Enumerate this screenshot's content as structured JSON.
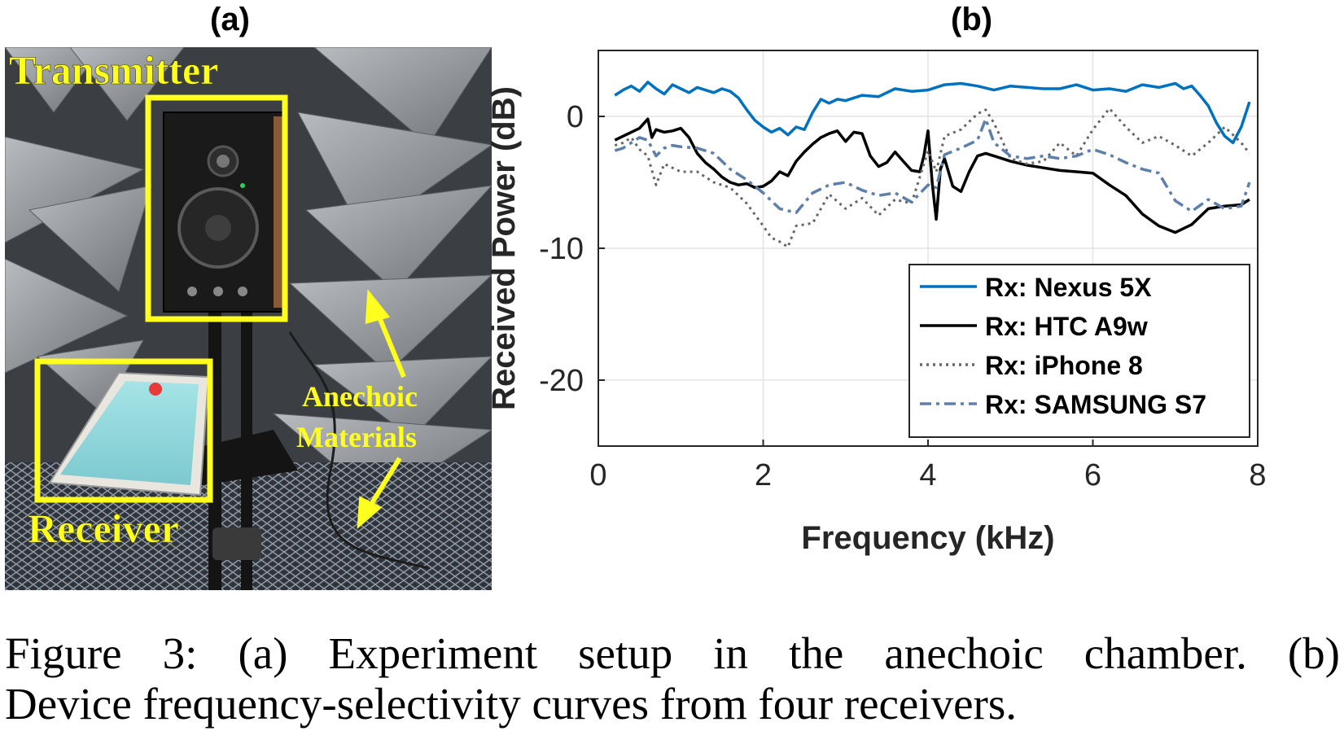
{
  "panel_a": {
    "label": "(a)",
    "annotations": {
      "transmitter": "Transmitter",
      "receiver": "Receiver",
      "anechoic_line1": "Anechoic",
      "anechoic_line2": "Materials"
    },
    "colors": {
      "highlight": "#ffff1f",
      "foam": "#a9acb0",
      "foam_dark": "#5c6064"
    }
  },
  "panel_b": {
    "label": "(b)"
  },
  "caption": {
    "line1": "Figure 3: (a) Experiment setup in the anechoic chamber. (b)",
    "line2": "Device frequency-selectivity curves from four receivers."
  },
  "chart_data": {
    "type": "line",
    "xlabel": "Frequency (kHz)",
    "ylabel": "Received Power (dB)",
    "xlim": [
      0,
      8
    ],
    "ylim": [
      -25,
      5
    ],
    "xticks": [
      0,
      2,
      4,
      6,
      8
    ],
    "yticks": [
      0,
      -10,
      -20
    ],
    "grid": true,
    "legend_position": "bottom-right",
    "series": [
      {
        "name": "Rx: Nexus 5X",
        "color": "#0072bd",
        "style": "solid",
        "x": [
          0.2,
          0.3,
          0.4,
          0.5,
          0.6,
          0.7,
          0.8,
          0.9,
          1.0,
          1.1,
          1.2,
          1.3,
          1.4,
          1.5,
          1.6,
          1.7,
          1.8,
          1.9,
          2.0,
          2.1,
          2.2,
          2.3,
          2.4,
          2.5,
          2.6,
          2.7,
          2.8,
          2.9,
          3.0,
          3.2,
          3.4,
          3.6,
          3.8,
          4.0,
          4.2,
          4.4,
          4.6,
          4.8,
          5.0,
          5.2,
          5.4,
          5.6,
          5.8,
          6.0,
          6.2,
          6.4,
          6.6,
          6.8,
          7.0,
          7.1,
          7.2,
          7.3,
          7.4,
          7.5,
          7.6,
          7.7,
          7.8,
          7.9
        ],
        "y": [
          1.6,
          2.0,
          2.3,
          1.9,
          2.6,
          2.1,
          1.7,
          2.4,
          2.1,
          1.8,
          2.2,
          2.0,
          1.8,
          2.1,
          1.9,
          1.4,
          0.5,
          -0.3,
          -0.8,
          -1.2,
          -0.9,
          -1.4,
          -0.8,
          -1.0,
          0.3,
          1.3,
          1.0,
          1.3,
          1.2,
          1.6,
          1.5,
          2.1,
          1.9,
          2.0,
          2.4,
          2.5,
          2.3,
          2.0,
          2.3,
          2.2,
          2.1,
          2.1,
          2.4,
          2.0,
          2.1,
          1.9,
          2.4,
          2.2,
          2.5,
          2.1,
          2.3,
          1.6,
          0.8,
          -0.5,
          -1.5,
          -2.0,
          -0.8,
          1.1
        ]
      },
      {
        "name": "Rx: HTC A9w",
        "color": "#000000",
        "style": "solid",
        "x": [
          0.2,
          0.3,
          0.4,
          0.5,
          0.6,
          0.65,
          0.7,
          0.8,
          0.9,
          1.0,
          1.1,
          1.2,
          1.3,
          1.4,
          1.5,
          1.6,
          1.7,
          1.8,
          1.9,
          2.0,
          2.1,
          2.2,
          2.3,
          2.4,
          2.5,
          2.6,
          2.7,
          2.8,
          2.9,
          3.0,
          3.1,
          3.2,
          3.3,
          3.4,
          3.5,
          3.6,
          3.7,
          3.8,
          3.9,
          3.95,
          4.0,
          4.05,
          4.1,
          4.15,
          4.2,
          4.3,
          4.4,
          4.5,
          4.6,
          4.7,
          4.8,
          5.0,
          5.2,
          5.4,
          5.6,
          5.8,
          6.0,
          6.2,
          6.4,
          6.6,
          6.8,
          7.0,
          7.2,
          7.4,
          7.6,
          7.8,
          7.9
        ],
        "y": [
          -1.8,
          -1.5,
          -1.2,
          -0.9,
          -0.2,
          -1.6,
          -1.0,
          -1.2,
          -1.1,
          -0.9,
          -1.6,
          -2.8,
          -3.5,
          -4.0,
          -4.6,
          -5.0,
          -5.2,
          -5.1,
          -5.4,
          -5.3,
          -4.9,
          -4.2,
          -4.5,
          -3.4,
          -2.7,
          -2.1,
          -1.6,
          -1.3,
          -1.1,
          -1.9,
          -1.2,
          -1.3,
          -3.0,
          -3.8,
          -3.5,
          -2.7,
          -3.4,
          -4.1,
          -4.2,
          -3.0,
          -1.1,
          -5.0,
          -7.8,
          -4.0,
          -3.2,
          -5.3,
          -5.7,
          -4.2,
          -3.0,
          -2.8,
          -3.0,
          -3.4,
          -3.7,
          -3.9,
          -4.1,
          -4.2,
          -4.3,
          -5.2,
          -6.0,
          -7.4,
          -8.3,
          -8.8,
          -8.2,
          -7.0,
          -6.8,
          -6.7,
          -6.3
        ]
      },
      {
        "name": "Rx: iPhone 8",
        "color": "#666666",
        "style": "dotted",
        "x": [
          0.2,
          0.3,
          0.4,
          0.5,
          0.6,
          0.7,
          0.8,
          0.9,
          1.0,
          1.2,
          1.4,
          1.6,
          1.8,
          2.0,
          2.1,
          2.2,
          2.3,
          2.4,
          2.6,
          2.8,
          3.0,
          3.2,
          3.4,
          3.6,
          3.8,
          4.0,
          4.1,
          4.2,
          4.4,
          4.6,
          4.7,
          4.8,
          5.0,
          5.2,
          5.4,
          5.6,
          5.8,
          6.0,
          6.2,
          6.4,
          6.6,
          6.8,
          7.0,
          7.2,
          7.4,
          7.6,
          7.8,
          7.9
        ],
        "y": [
          -2.2,
          -2.0,
          -1.6,
          -2.5,
          -3.0,
          -5.2,
          -3.6,
          -3.9,
          -4.2,
          -4.2,
          -5.0,
          -5.4,
          -6.6,
          -8.3,
          -9.2,
          -9.5,
          -9.9,
          -8.3,
          -8.1,
          -5.9,
          -7.0,
          -6.2,
          -7.5,
          -6.3,
          -6.6,
          -2.6,
          -4.2,
          -1.5,
          -1.0,
          0.2,
          0.5,
          -0.5,
          -3.2,
          -3.6,
          -3.4,
          -2.0,
          -3.0,
          -1.0,
          0.6,
          -0.8,
          -2.0,
          -1.5,
          -2.2,
          -3.0,
          -2.0,
          -0.8,
          -2.0,
          -2.8
        ]
      },
      {
        "name": "Rx: SAMSUNG S7",
        "color": "#5f7fab",
        "style": "dashdot",
        "x": [
          0.2,
          0.3,
          0.4,
          0.5,
          0.6,
          0.7,
          0.8,
          0.9,
          1.0,
          1.2,
          1.4,
          1.6,
          1.8,
          2.0,
          2.2,
          2.4,
          2.6,
          2.8,
          3.0,
          3.2,
          3.4,
          3.6,
          3.8,
          4.0,
          4.1,
          4.2,
          4.4,
          4.6,
          4.7,
          4.8,
          5.0,
          5.2,
          5.4,
          5.6,
          5.8,
          6.0,
          6.2,
          6.4,
          6.6,
          6.8,
          7.0,
          7.2,
          7.4,
          7.6,
          7.8,
          7.9
        ],
        "y": [
          -2.6,
          -2.4,
          -2.0,
          -1.6,
          -1.8,
          -3.0,
          -2.4,
          -2.2,
          -2.3,
          -2.4,
          -2.8,
          -4.0,
          -4.8,
          -5.8,
          -7.0,
          -7.3,
          -5.8,
          -5.2,
          -5.0,
          -5.6,
          -6.0,
          -5.8,
          -6.5,
          -5.2,
          -5.4,
          -2.9,
          -2.4,
          -1.8,
          -0.2,
          -2.0,
          -3.0,
          -3.2,
          -3.0,
          -3.2,
          -3.0,
          -2.5,
          -2.9,
          -3.5,
          -4.0,
          -4.3,
          -6.4,
          -7.2,
          -6.3,
          -7.0,
          -6.8,
          -5.0
        ]
      }
    ]
  }
}
